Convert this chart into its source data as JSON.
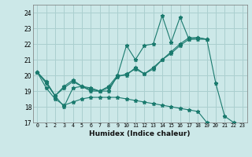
{
  "title": "",
  "xlabel": "Humidex (Indice chaleur)",
  "ylabel": "",
  "bg_color": "#cce8e8",
  "grid_color": "#aacfcf",
  "line_color": "#1a7a6e",
  "xlim": [
    -0.5,
    23.5
  ],
  "ylim": [
    17,
    24.5
  ],
  "yticks": [
    17,
    18,
    19,
    20,
    21,
    22,
    23,
    24
  ],
  "xticks": [
    0,
    1,
    2,
    3,
    4,
    5,
    6,
    7,
    8,
    9,
    10,
    11,
    12,
    13,
    14,
    15,
    16,
    17,
    18,
    19,
    20,
    21,
    22,
    23
  ],
  "series": [
    [
      20.2,
      19.6,
      18.7,
      18.0,
      19.2,
      19.3,
      19.0,
      19.0,
      19.0,
      20.0,
      21.9,
      21.0,
      21.9,
      22.0,
      23.8,
      22.1,
      23.7,
      22.3,
      22.3,
      22.3,
      19.5,
      17.4,
      17.0,
      null
    ],
    [
      20.2,
      19.6,
      18.7,
      19.3,
      19.7,
      19.3,
      19.2,
      19.0,
      19.3,
      20.0,
      20.0,
      20.5,
      20.1,
      20.5,
      21.0,
      21.5,
      22.0,
      22.4,
      22.4,
      22.3,
      null,
      null,
      null,
      null
    ],
    [
      20.2,
      19.5,
      18.7,
      19.2,
      19.6,
      19.3,
      19.1,
      19.0,
      19.2,
      19.9,
      20.1,
      20.4,
      20.1,
      20.4,
      21.0,
      21.4,
      21.9,
      22.3,
      22.4,
      22.3,
      null,
      null,
      null,
      null
    ],
    [
      20.2,
      19.2,
      18.5,
      18.1,
      18.3,
      18.5,
      18.6,
      18.6,
      18.6,
      18.6,
      18.5,
      18.4,
      18.3,
      18.2,
      18.1,
      18.0,
      17.9,
      17.8,
      17.7,
      17.0,
      null,
      null,
      null,
      null
    ]
  ]
}
